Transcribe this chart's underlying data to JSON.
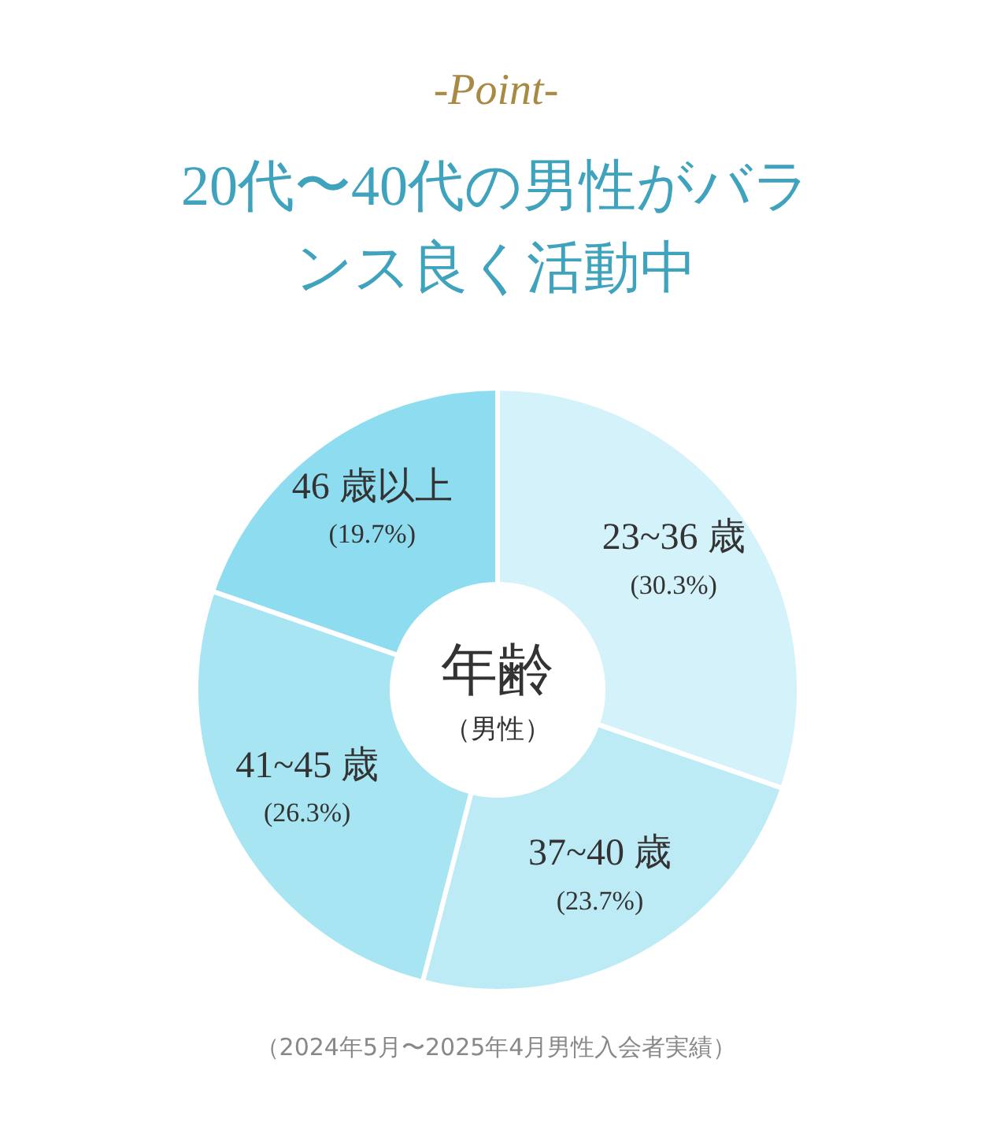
{
  "chart_data": {
    "type": "donut",
    "subtitle": "-Point-",
    "title": "20代〜40代の男性がバランス良く活動中",
    "categories": [
      "23~36 歳",
      "37~40 歳",
      "41~45 歳",
      "46 歳以上"
    ],
    "values": [
      30.3,
      23.7,
      26.3,
      19.7
    ],
    "value_labels": [
      "(30.3%)",
      "(23.7%)",
      "(26.3%)",
      "(19.7%)"
    ],
    "colors": [
      "#d3f2f9",
      "#bcebf6",
      "#a7e5f3",
      "#8edcf0"
    ],
    "legend": false,
    "annotations": [
      "年齢",
      "（男性）",
      "（2024年5月〜2025年4月男性入会者実績）"
    ]
  }
}
